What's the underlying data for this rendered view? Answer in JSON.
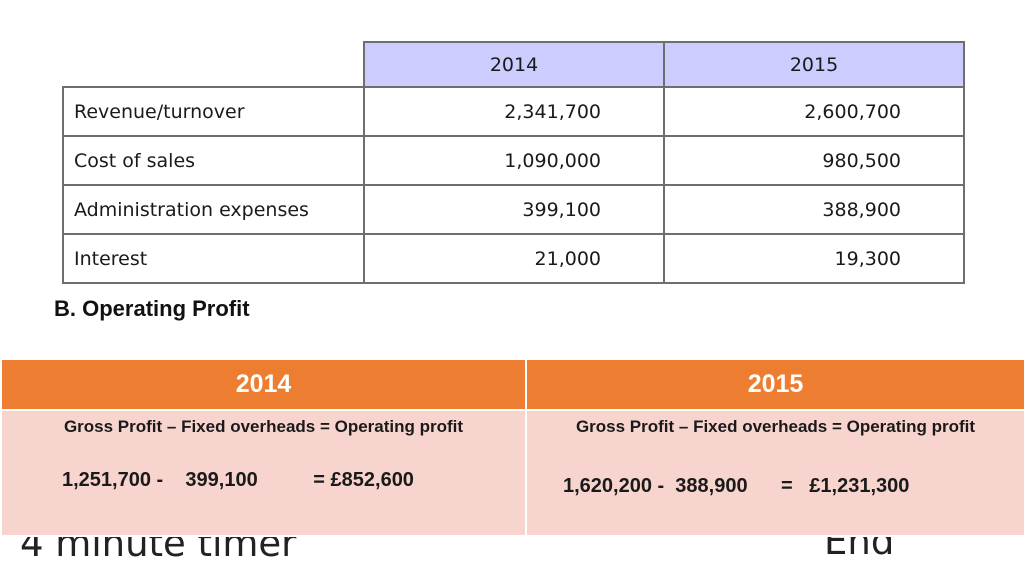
{
  "financials": {
    "years": [
      "2014",
      "2015"
    ],
    "rows": [
      {
        "label": "Revenue/turnover",
        "values": [
          "2,341,700",
          "2,600,700"
        ]
      },
      {
        "label": "Cost of sales",
        "values": [
          "1,090,000",
          "980,500"
        ]
      },
      {
        "label": "Administration expenses",
        "values": [
          "399,100",
          "388,900"
        ]
      },
      {
        "label": "Interest",
        "values": [
          "21,000",
          "19,300"
        ]
      }
    ]
  },
  "section_heading": "B. Operating Profit",
  "operating_profit": {
    "columns": [
      {
        "year": "2014",
        "formula": "Gross Profit – Fixed overheads = Operating profit",
        "calculation": "1,251,700 -    399,100          = £852,600"
      },
      {
        "year": "2015",
        "formula": "Gross Profit – Fixed overheads = Operating profit",
        "calculation": "1,620,200 -  388,900      =   £1,231,300"
      }
    ],
    "colors": {
      "header": "#ed7d31",
      "cell": "#f8d4ce"
    }
  },
  "footer": {
    "timer_label": "4 minute timer",
    "end_label": "End"
  }
}
